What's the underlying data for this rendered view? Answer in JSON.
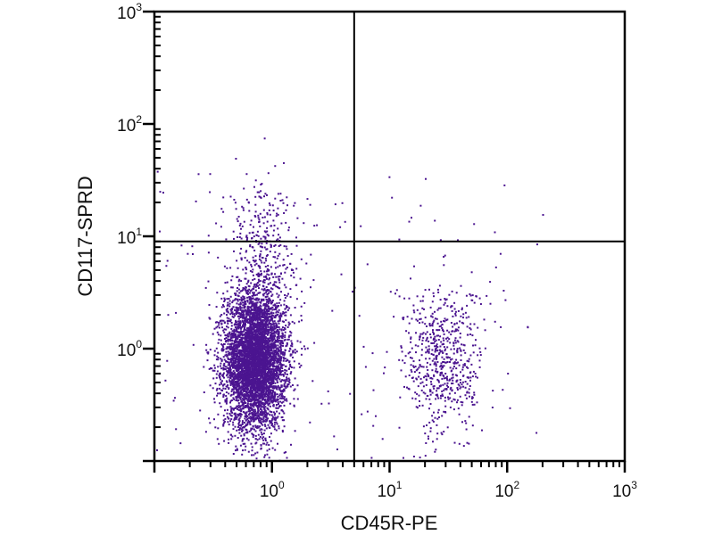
{
  "chart_data": {
    "type": "scatter",
    "title": "",
    "xlabel": "CD45R-PE",
    "ylabel": "CD117-SPRD",
    "xscale": "log",
    "yscale": "log",
    "xlim": [
      0.1,
      1000
    ],
    "ylim": [
      0.1,
      1000
    ],
    "x_ticks": [
      {
        "value": 1,
        "base": "10",
        "exp": "0"
      },
      {
        "value": 10,
        "base": "10",
        "exp": "1"
      },
      {
        "value": 100,
        "base": "10",
        "exp": "2"
      },
      {
        "value": 1000,
        "base": "10",
        "exp": "3"
      }
    ],
    "y_ticks": [
      {
        "value": 1,
        "base": "10",
        "exp": "0"
      },
      {
        "value": 10,
        "base": "10",
        "exp": "1"
      },
      {
        "value": 100,
        "base": "10",
        "exp": "2"
      },
      {
        "value": 1000,
        "base": "10",
        "exp": "3"
      }
    ],
    "quadrant_gates": {
      "x": 5,
      "y": 9
    },
    "point_color": "#4b1490",
    "populations": [
      {
        "name": "CD45R-negative main",
        "x_log_center": -0.15,
        "x_log_sd": 0.13,
        "y_log_center": -0.1,
        "y_log_sd": 0.3,
        "count": 5200
      },
      {
        "name": "CD45R-negative CD117-positive tail",
        "x_log_center": -0.1,
        "x_log_sd": 0.16,
        "y_log_center": 0.85,
        "y_log_sd": 0.35,
        "count": 380
      },
      {
        "name": "CD45R-positive",
        "x_log_center": 1.45,
        "x_log_sd": 0.17,
        "y_log_center": -0.1,
        "y_log_sd": 0.33,
        "count": 620
      },
      {
        "name": "background",
        "uniform": true,
        "x_log_range": [
          -1,
          2.3
        ],
        "y_log_range": [
          -1,
          1.6
        ],
        "count": 140
      }
    ]
  }
}
